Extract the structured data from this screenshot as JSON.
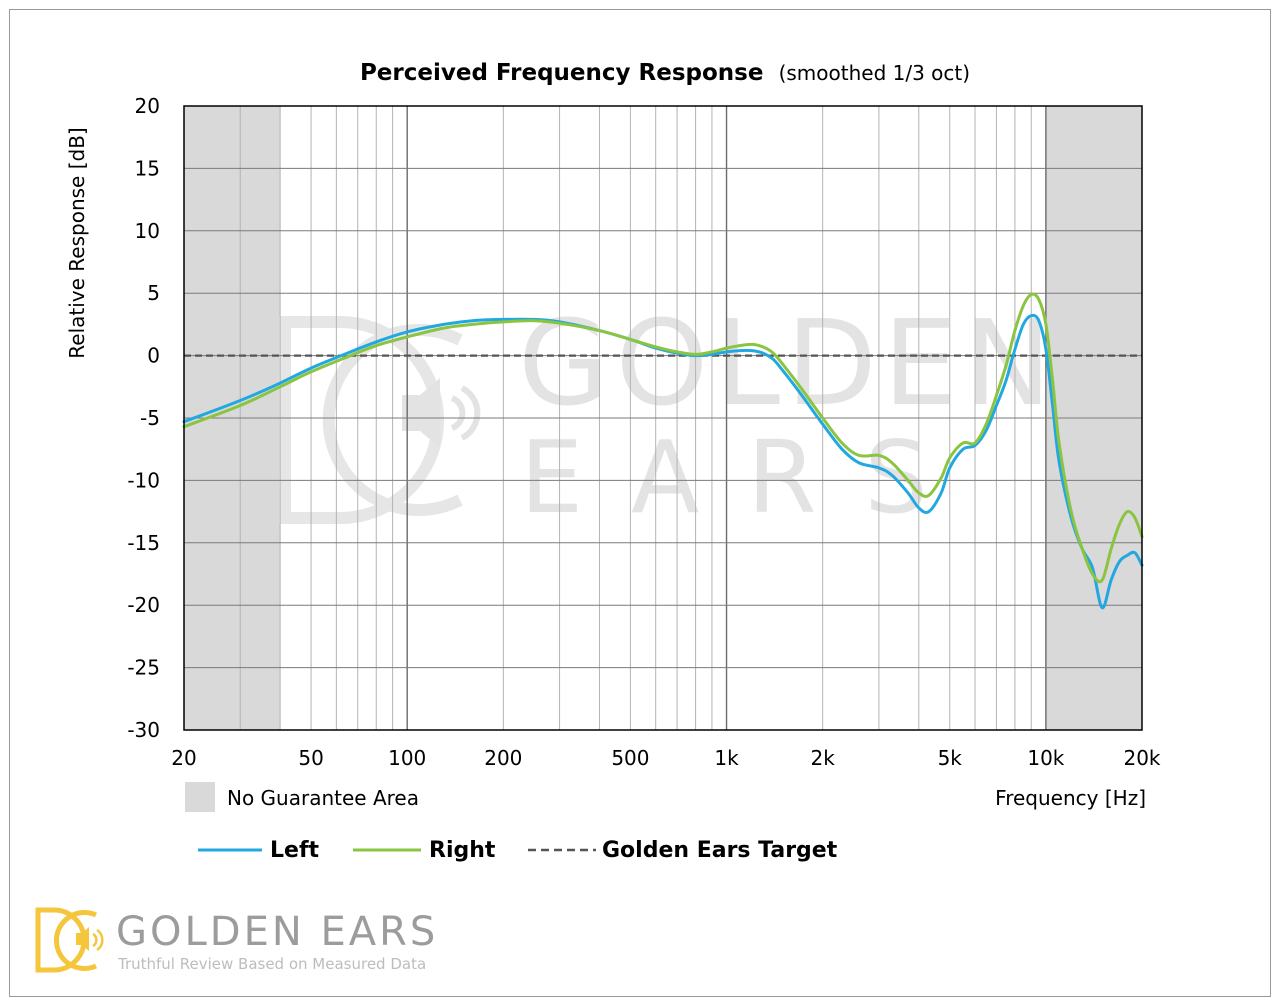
{
  "chart_data": {
    "type": "line",
    "title": "Perceived Frequency Response",
    "subtitle": "(smoothed 1/3 oct)",
    "xlabel": "Frequency [Hz]",
    "ylabel": "Relative Response [dB]",
    "x_scale": "log",
    "xlim": [
      20,
      20000
    ],
    "ylim": [
      -30,
      20
    ],
    "grid": true,
    "x_ticks": [
      20,
      50,
      100,
      200,
      500,
      1000,
      2000,
      5000,
      10000,
      20000
    ],
    "x_tick_labels": [
      "20",
      "50",
      "100",
      "200",
      "500",
      "1k",
      "2k",
      "5k",
      "10k",
      "20k"
    ],
    "y_ticks": [
      20,
      15,
      10,
      5,
      0,
      -5,
      -10,
      -15,
      -20,
      -25,
      -30
    ],
    "y_tick_labels": [
      "20",
      "15",
      "10",
      "5",
      "0",
      "-5",
      "-10",
      "-15",
      "-20",
      "-25",
      "-30"
    ],
    "no_guarantee_ranges": [
      [
        20,
        40
      ],
      [
        10000,
        20000
      ]
    ],
    "no_guarantee_label": "No Guarantee Area",
    "legend_placement": "bottom-left",
    "series": [
      {
        "name": "Left",
        "color": "#22a8e0",
        "style": "solid",
        "x": [
          20,
          30,
          40,
          50,
          65,
          80,
          100,
          130,
          160,
          200,
          250,
          300,
          400,
          500,
          600,
          700,
          800,
          900,
          1000,
          1100,
          1200,
          1300,
          1400,
          1500,
          1700,
          2000,
          2300,
          2600,
          3000,
          3300,
          3700,
          4000,
          4300,
          4700,
          5000,
          5500,
          6000,
          6500,
          7000,
          7500,
          8000,
          8500,
          9000,
          9500,
          10000,
          10500,
          11000,
          12000,
          13000,
          14000,
          15000,
          16000,
          17000,
          18000,
          19000,
          20000
        ],
        "y": [
          -5.3,
          -3.6,
          -2.2,
          -1.0,
          0.2,
          1.1,
          1.9,
          2.5,
          2.8,
          2.9,
          2.9,
          2.7,
          2.0,
          1.3,
          0.6,
          0.2,
          0.0,
          0.1,
          0.3,
          0.4,
          0.4,
          0.2,
          -0.3,
          -1.2,
          -3.0,
          -5.5,
          -7.5,
          -8.6,
          -9.0,
          -9.6,
          -11.0,
          -12.2,
          -12.5,
          -11.0,
          -9.0,
          -7.5,
          -7.2,
          -6.0,
          -4.0,
          -2.0,
          0.5,
          2.5,
          3.2,
          2.8,
          0.5,
          -4.0,
          -8.5,
          -13.0,
          -15.5,
          -17.0,
          -20.2,
          -18.0,
          -16.5,
          -16.0,
          -15.8,
          -16.8
        ]
      },
      {
        "name": "Right",
        "color": "#8ac440",
        "style": "solid",
        "x": [
          20,
          30,
          40,
          50,
          65,
          80,
          100,
          130,
          160,
          200,
          250,
          300,
          400,
          500,
          600,
          700,
          800,
          900,
          1000,
          1100,
          1200,
          1300,
          1400,
          1500,
          1700,
          2000,
          2300,
          2600,
          3000,
          3300,
          3700,
          4000,
          4300,
          4700,
          5000,
          5500,
          6000,
          6500,
          7000,
          7500,
          8000,
          8500,
          9000,
          9500,
          10000,
          10500,
          11000,
          12000,
          13000,
          14000,
          15000,
          16000,
          17000,
          18000,
          19000,
          20000
        ],
        "y": [
          -5.7,
          -4.0,
          -2.5,
          -1.3,
          -0.1,
          0.8,
          1.5,
          2.2,
          2.5,
          2.7,
          2.8,
          2.6,
          2.0,
          1.3,
          0.7,
          0.3,
          0.1,
          0.3,
          0.6,
          0.8,
          0.9,
          0.7,
          0.2,
          -0.7,
          -2.5,
          -5.0,
          -7.0,
          -8.0,
          -8.0,
          -8.6,
          -10.0,
          -11.0,
          -11.2,
          -9.8,
          -8.2,
          -7.0,
          -7.0,
          -5.5,
          -3.2,
          -0.8,
          2.0,
          4.0,
          4.9,
          4.5,
          2.5,
          -2.0,
          -7.0,
          -12.5,
          -15.5,
          -17.5,
          -18.0,
          -15.5,
          -13.5,
          -12.5,
          -13.0,
          -14.5
        ]
      },
      {
        "name": "Golden Ears Target",
        "color": "#555555",
        "style": "dashed",
        "x": [
          20,
          20000
        ],
        "y": [
          0,
          0
        ]
      }
    ]
  },
  "brand": {
    "name": "GOLDEN EARS",
    "tagline": "Truthful Review Based on Measured Data",
    "watermark_top": "GOLDEN",
    "watermark_bottom": "E A R S",
    "logo_color": "#f5c63c"
  }
}
